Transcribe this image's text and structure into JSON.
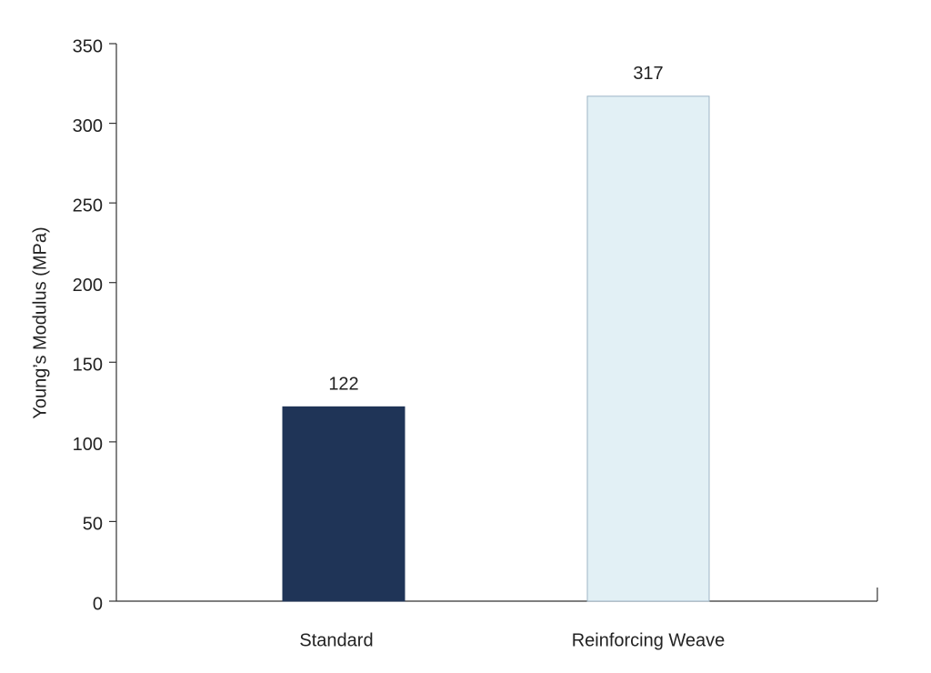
{
  "chart_data": {
    "type": "bar",
    "ylabel": "Young’s Modulus (MPa)",
    "categories": [
      "Standard",
      "Reinforcing Weave"
    ],
    "values": [
      122,
      317
    ],
    "colors": [
      "#1f3457",
      "#e2f0f5"
    ],
    "ylim": [
      0,
      350
    ],
    "yticks": [
      0,
      50,
      100,
      150,
      200,
      250,
      300,
      350
    ],
    "grid": false
  }
}
